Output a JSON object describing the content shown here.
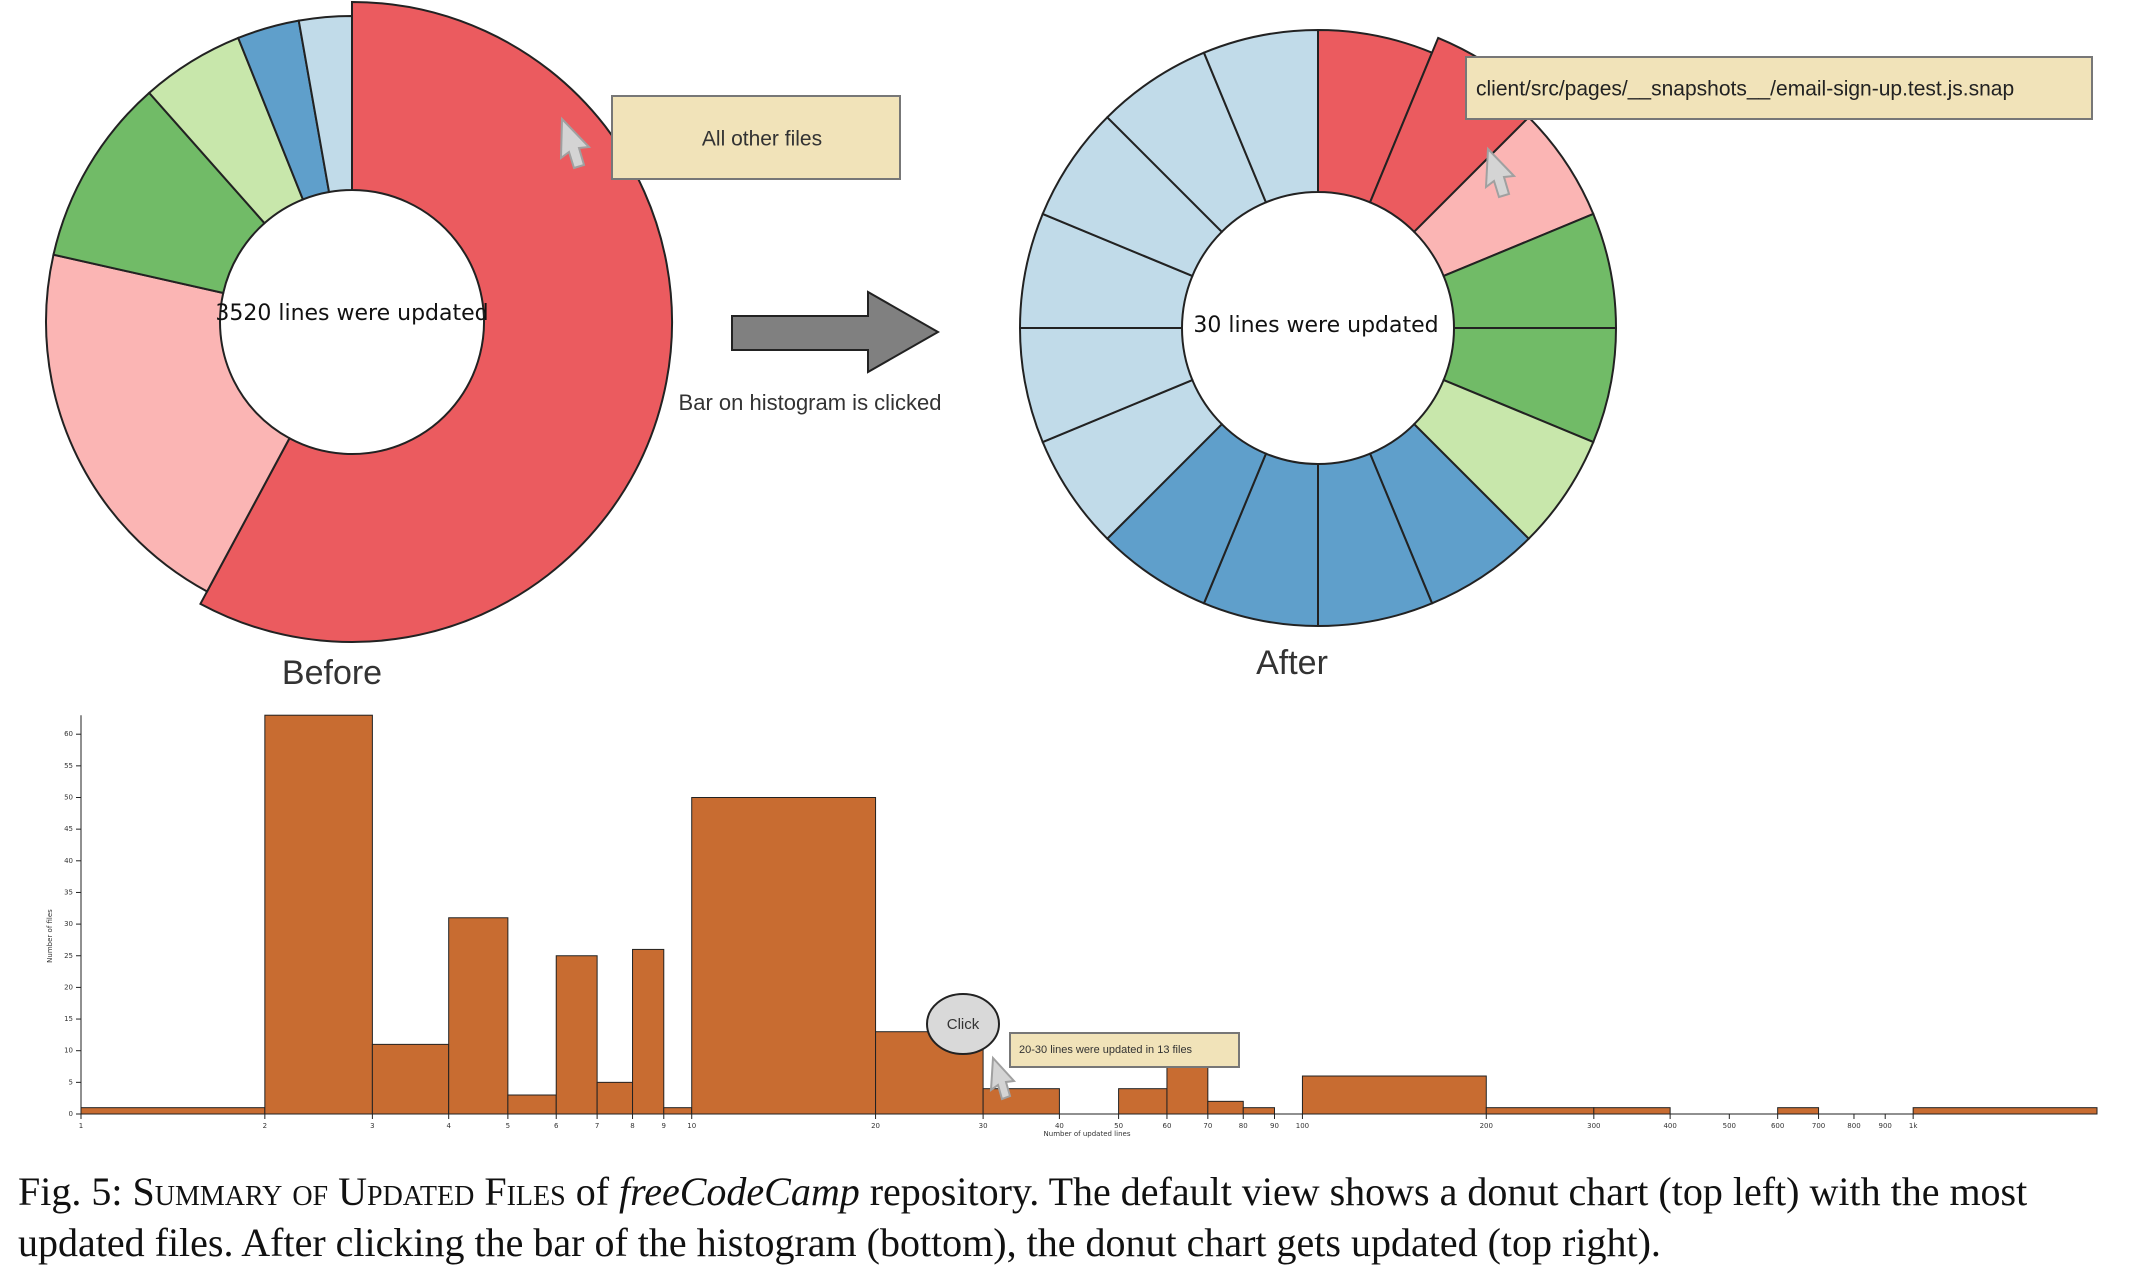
{
  "colors": {
    "red": "#eb5b5f",
    "pink": "#fbb5b4",
    "green": "#71bb67",
    "light_green": "#c8e7ab",
    "blue": "#5f9fcb",
    "light_blue": "#c1dbe9",
    "bar": "#c86c31",
    "arrow": "#808080",
    "tooltip": "#f1e3b9"
  },
  "chart_data": [
    {
      "type": "pie",
      "variant": "donut",
      "center_label": "3520 lines were updated",
      "caption_label": "Before",
      "tooltip": "All other files",
      "slices": [
        {
          "color": "red",
          "value": 58.2
        },
        {
          "color": "pink",
          "value": 20.8
        },
        {
          "color": "green",
          "value": 10.0
        },
        {
          "color": "light_green",
          "value": 5.5
        },
        {
          "color": "blue",
          "value": 3.3
        },
        {
          "color": "light_blue",
          "value": 2.8
        }
      ],
      "highlighted_slice": 0
    },
    {
      "type": "pie",
      "variant": "donut",
      "center_label": "30 lines were updated",
      "caption_label": "After",
      "tooltip": "client/src/pages/__snapshots__/email-sign-up.test.js.snap",
      "slices": [
        {
          "color": "red",
          "value": 1
        },
        {
          "color": "red",
          "value": 1
        },
        {
          "color": "pink",
          "value": 1
        },
        {
          "color": "green",
          "value": 1
        },
        {
          "color": "green",
          "value": 1
        },
        {
          "color": "light_green",
          "value": 1
        },
        {
          "color": "blue",
          "value": 1
        },
        {
          "color": "blue",
          "value": 1
        },
        {
          "color": "blue",
          "value": 1
        },
        {
          "color": "blue",
          "value": 1
        },
        {
          "color": "light_blue",
          "value": 1
        },
        {
          "color": "light_blue",
          "value": 1
        },
        {
          "color": "light_blue",
          "value": 1
        },
        {
          "color": "light_blue",
          "value": 1
        },
        {
          "color": "light_blue",
          "value": 1
        },
        {
          "color": "light_blue",
          "value": 1
        }
      ],
      "highlighted_slice": 1
    },
    {
      "type": "bar",
      "variant": "histogram",
      "xscale": "log",
      "xlabel": "Number of updated lines",
      "ylabel": "Number of files",
      "ylim": [
        0,
        63
      ],
      "yticks": [
        0,
        5,
        10,
        15,
        20,
        25,
        30,
        35,
        40,
        45,
        50,
        55,
        60
      ],
      "xticks": [
        {
          "value": 1,
          "label": "1"
        },
        {
          "value": 2,
          "label": "2"
        },
        {
          "value": 3,
          "label": "3"
        },
        {
          "value": 4,
          "label": "4"
        },
        {
          "value": 5,
          "label": "5"
        },
        {
          "value": 6,
          "label": "6"
        },
        {
          "value": 7,
          "label": "7"
        },
        {
          "value": 8,
          "label": "8"
        },
        {
          "value": 9,
          "label": "9"
        },
        {
          "value": 10,
          "label": "10"
        },
        {
          "value": 20,
          "label": "20"
        },
        {
          "value": 30,
          "label": "30"
        },
        {
          "value": 40,
          "label": "40"
        },
        {
          "value": 50,
          "label": "50"
        },
        {
          "value": 60,
          "label": "60"
        },
        {
          "value": 70,
          "label": "70"
        },
        {
          "value": 80,
          "label": "80"
        },
        {
          "value": 90,
          "label": "90"
        },
        {
          "value": 100,
          "label": "100"
        },
        {
          "value": 200,
          "label": "200"
        },
        {
          "value": 300,
          "label": "300"
        },
        {
          "value": 400,
          "label": "400"
        },
        {
          "value": 500,
          "label": "500"
        },
        {
          "value": 600,
          "label": "600"
        },
        {
          "value": 700,
          "label": "700"
        },
        {
          "value": 800,
          "label": "800"
        },
        {
          "value": 900,
          "label": "900"
        },
        {
          "value": 1000,
          "label": "1k"
        }
      ],
      "bins": [
        {
          "x0": 1,
          "x1": 2,
          "count": 1
        },
        {
          "x0": 2,
          "x1": 3,
          "count": 63
        },
        {
          "x0": 3,
          "x1": 4,
          "count": 11
        },
        {
          "x0": 4,
          "x1": 5,
          "count": 31
        },
        {
          "x0": 5,
          "x1": 6,
          "count": 3
        },
        {
          "x0": 6,
          "x1": 7,
          "count": 25
        },
        {
          "x0": 7,
          "x1": 8,
          "count": 5
        },
        {
          "x0": 8,
          "x1": 9,
          "count": 26
        },
        {
          "x0": 9,
          "x1": 10,
          "count": 1
        },
        {
          "x0": 10,
          "x1": 20,
          "count": 50
        },
        {
          "x0": 20,
          "x1": 30,
          "count": 13
        },
        {
          "x0": 30,
          "x1": 40,
          "count": 4
        },
        {
          "x0": 50,
          "x1": 60,
          "count": 4
        },
        {
          "x0": 60,
          "x1": 70,
          "count": 11
        },
        {
          "x0": 70,
          "x1": 80,
          "count": 2
        },
        {
          "x0": 80,
          "x1": 90,
          "count": 1
        },
        {
          "x0": 100,
          "x1": 200,
          "count": 6
        },
        {
          "x0": 200,
          "x1": 300,
          "count": 1
        },
        {
          "x0": 300,
          "x1": 400,
          "count": 1
        },
        {
          "x0": 600,
          "x1": 700,
          "count": 1
        },
        {
          "x0": 1000,
          "x1": 2000,
          "count": 1
        }
      ],
      "clicked_bin": 10,
      "click_label": "Click",
      "tooltip": "20-30 lines were updated in 13 files"
    }
  ],
  "transition_label": "Bar on histogram is clicked",
  "caption": {
    "lead": "Fig. 5: ",
    "title": "Summary of Updated Files",
    "mid": " of ",
    "repo": "freeCodeCamp",
    "rest": " repository. The default view shows a donut chart (top left) with the most updated files. After clicking the bar of the histogram (bottom), the donut chart gets updated (top right)."
  }
}
